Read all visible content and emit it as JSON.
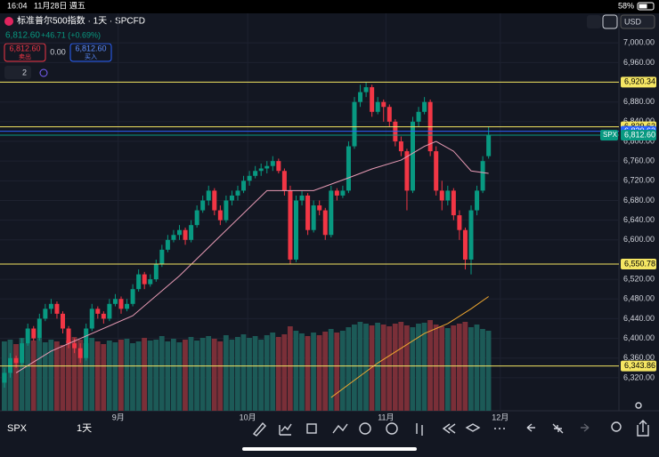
{
  "status": {
    "time": "16:04",
    "date": "11月28日 週五",
    "battery": "58%"
  },
  "header": {
    "title": "标准普尔500指数 · 1天 · SPCFD",
    "price": "6,812.60",
    "change": "+46.71 (+0.69%)",
    "sell_price": "6,812.60",
    "sell": "卖出",
    "spread": "0.00",
    "buy_price": "6,812.60",
    "buy": "买入",
    "indicators": "2",
    "currency": "USD"
  },
  "footer": {
    "symbol": "SPX",
    "interval": "1天"
  },
  "chart_data": {
    "type": "candlestick",
    "up_color": "#089981",
    "down_color": "#f23645",
    "ylim": [
      6253,
      7060
    ],
    "yticks": [
      {
        "value": 7000,
        "label": "7,000.00"
      },
      {
        "value": 6960,
        "label": "6,960.00"
      },
      {
        "value": 6880,
        "label": "6,880.00"
      },
      {
        "value": 6840,
        "label": "6,840.00"
      },
      {
        "value": 6800,
        "label": "6,800.00"
      },
      {
        "value": 6760,
        "label": "6,760.00"
      },
      {
        "value": 6720,
        "label": "6,720.00"
      },
      {
        "value": 6680,
        "label": "6,680.00"
      },
      {
        "value": 6640,
        "label": "6,640.00"
      },
      {
        "value": 6600,
        "label": "6,600.00"
      },
      {
        "value": 6520,
        "label": "6,520.00"
      },
      {
        "value": 6480,
        "label": "6,480.00"
      },
      {
        "value": 6440,
        "label": "6,440.00"
      },
      {
        "value": 6400,
        "label": "6,400.00"
      },
      {
        "value": 6360,
        "label": "6,360.00"
      },
      {
        "value": 6320,
        "label": "6,320.00"
      }
    ],
    "x_labels": [
      {
        "index": 19.5,
        "label": "9月"
      },
      {
        "index": 41.7,
        "label": "10月"
      },
      {
        "index": 65.4,
        "label": "11月"
      },
      {
        "index": 85,
        "label": "12月"
      }
    ],
    "candles": [
      [
        6310,
        6340,
        6300,
        6330
      ],
      [
        6330,
        6370,
        6320,
        6360
      ],
      [
        6360,
        6365,
        6340,
        6350
      ],
      [
        6350,
        6400,
        6345,
        6390
      ],
      [
        6390,
        6430,
        6385,
        6420
      ],
      [
        6420,
        6425,
        6395,
        6400
      ],
      [
        6400,
        6450,
        6395,
        6440
      ],
      [
        6440,
        6470,
        6435,
        6460
      ],
      [
        6460,
        6480,
        6450,
        6470
      ],
      [
        6470,
        6475,
        6440,
        6450
      ],
      [
        6450,
        6455,
        6410,
        6420
      ],
      [
        6420,
        6425,
        6380,
        6390
      ],
      [
        6390,
        6400,
        6370,
        6380
      ],
      [
        6380,
        6390,
        6350,
        6360
      ],
      [
        6360,
        6430,
        6355,
        6420
      ],
      [
        6420,
        6470,
        6415,
        6460
      ],
      [
        6460,
        6465,
        6440,
        6450
      ],
      [
        6450,
        6455,
        6430,
        6440
      ],
      [
        6440,
        6480,
        6435,
        6470
      ],
      [
        6470,
        6490,
        6465,
        6480
      ],
      [
        6480,
        6485,
        6450,
        6460
      ],
      [
        6460,
        6480,
        6455,
        6470
      ],
      [
        6470,
        6510,
        6465,
        6500
      ],
      [
        6500,
        6540,
        6495,
        6530
      ],
      [
        6530,
        6535,
        6500,
        6510
      ],
      [
        6510,
        6530,
        6505,
        6520
      ],
      [
        6520,
        6560,
        6515,
        6550
      ],
      [
        6550,
        6590,
        6545,
        6580
      ],
      [
        6580,
        6610,
        6575,
        6600
      ],
      [
        6600,
        6620,
        6595,
        6610
      ],
      [
        6610,
        6630,
        6600,
        6620
      ],
      [
        6620,
        6625,
        6590,
        6600
      ],
      [
        6600,
        6640,
        6595,
        6630
      ],
      [
        6630,
        6670,
        6625,
        6660
      ],
      [
        6660,
        6690,
        6655,
        6680
      ],
      [
        6680,
        6710,
        6670,
        6700
      ],
      [
        6700,
        6705,
        6650,
        6660
      ],
      [
        6660,
        6670,
        6630,
        6640
      ],
      [
        6640,
        6690,
        6635,
        6680
      ],
      [
        6680,
        6700,
        6670,
        6690
      ],
      [
        6690,
        6710,
        6680,
        6700
      ],
      [
        6700,
        6730,
        6695,
        6720
      ],
      [
        6720,
        6740,
        6710,
        6730
      ],
      [
        6730,
        6750,
        6725,
        6740
      ],
      [
        6740,
        6755,
        6730,
        6745
      ],
      [
        6745,
        6760,
        6735,
        6750
      ],
      [
        6750,
        6770,
        6740,
        6760
      ],
      [
        6760,
        6765,
        6735,
        6740
      ],
      [
        6740,
        6745,
        6690,
        6700
      ],
      [
        6700,
        6710,
        6550,
        6560
      ],
      [
        6560,
        6690,
        6555,
        6680
      ],
      [
        6680,
        6700,
        6670,
        6690
      ],
      [
        6690,
        6695,
        6610,
        6620
      ],
      [
        6620,
        6680,
        6615,
        6670
      ],
      [
        6670,
        6680,
        6650,
        6660
      ],
      [
        6660,
        6665,
        6600,
        6610
      ],
      [
        6610,
        6710,
        6605,
        6700
      ],
      [
        6700,
        6705,
        6680,
        6690
      ],
      [
        6690,
        6710,
        6685,
        6700
      ],
      [
        6700,
        6800,
        6695,
        6790
      ],
      [
        6790,
        6890,
        6785,
        6880
      ],
      [
        6880,
        6915,
        6870,
        6900
      ],
      [
        6900,
        6920,
        6890,
        6910
      ],
      [
        6910,
        6915,
        6850,
        6860
      ],
      [
        6860,
        6890,
        6855,
        6880
      ],
      [
        6880,
        6885,
        6840,
        6870
      ],
      [
        6870,
        6875,
        6830,
        6840
      ],
      [
        6840,
        6845,
        6790,
        6800
      ],
      [
        6800,
        6810,
        6770,
        6780
      ],
      [
        6780,
        6785,
        6660,
        6700
      ],
      [
        6700,
        6850,
        6695,
        6840
      ],
      [
        6840,
        6870,
        6830,
        6860
      ],
      [
        6860,
        6890,
        6855,
        6880
      ],
      [
        6880,
        6885,
        6770,
        6780
      ],
      [
        6780,
        6790,
        6690,
        6700
      ],
      [
        6700,
        6720,
        6660,
        6680
      ],
      [
        6680,
        6710,
        6670,
        6700
      ],
      [
        6700,
        6705,
        6640,
        6650
      ],
      [
        6650,
        6660,
        6600,
        6620
      ],
      [
        6620,
        6625,
        6540,
        6560
      ],
      [
        6560,
        6670,
        6530,
        6660
      ],
      [
        6660,
        6710,
        6650,
        6700
      ],
      [
        6700,
        6770,
        6695,
        6760
      ],
      [
        6770,
        6830,
        6765,
        6812.6
      ]
    ],
    "volume_lim": [
      0,
      130
    ],
    "volume": [
      78,
      80,
      75,
      82,
      76,
      79,
      81,
      77,
      80,
      78,
      74,
      79,
      83,
      80,
      76,
      82,
      78,
      75,
      79,
      77,
      80,
      81,
      76,
      78,
      82,
      79,
      80,
      84,
      78,
      81,
      77,
      80,
      83,
      79,
      82,
      84,
      81,
      78,
      85,
      80,
      83,
      86,
      82,
      84,
      80,
      85,
      88,
      83,
      86,
      95,
      90,
      87,
      84,
      88,
      85,
      89,
      92,
      88,
      90,
      94,
      97,
      100,
      98,
      96,
      99,
      97,
      95,
      98,
      100,
      96,
      94,
      98,
      99,
      102,
      97,
      95,
      93,
      96,
      98,
      100,
      94,
      97,
      92,
      90
    ],
    "ma_pink": [
      [
        2,
        6330
      ],
      [
        8,
        6374
      ],
      [
        15,
        6410
      ],
      [
        22,
        6446
      ],
      [
        30,
        6527
      ],
      [
        37,
        6608
      ],
      [
        45,
        6700
      ],
      [
        53,
        6700
      ],
      [
        59,
        6726
      ],
      [
        63,
        6744
      ],
      [
        68,
        6762
      ],
      [
        72,
        6790
      ],
      [
        74,
        6800
      ],
      [
        77,
        6780
      ],
      [
        80,
        6740
      ],
      [
        83,
        6735
      ]
    ],
    "ma_orange": [
      [
        56,
        6280
      ],
      [
        60,
        6315
      ],
      [
        64,
        6350
      ],
      [
        68,
        6380
      ],
      [
        72,
        6410
      ],
      [
        76,
        6430
      ],
      [
        80,
        6460
      ],
      [
        83,
        6485
      ]
    ],
    "levels": [
      {
        "value": 6920.34,
        "label": "6,920.34",
        "color": "#f5e663"
      },
      {
        "value": 6829.62,
        "label": "6,829.62",
        "color": "#f5e663"
      },
      {
        "value": 6820.62,
        "label": "6,820.62",
        "color": "#2962ff"
      },
      {
        "value": 6812.6,
        "label": "6,812.60",
        "color": "#089981",
        "tag": "SPX"
      },
      {
        "value": 6550.78,
        "label": "6,550.78",
        "color": "#f5e663"
      },
      {
        "value": 6343.86,
        "label": "6,343.86",
        "color": "#f5e663"
      }
    ]
  }
}
